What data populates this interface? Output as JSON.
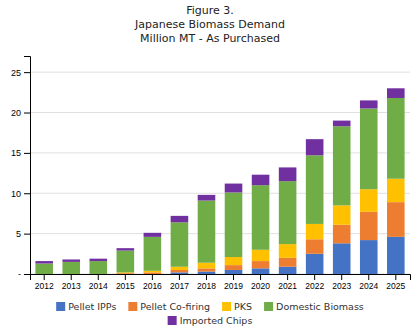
{
  "chart_data": {
    "type": "bar",
    "title": "Figure 3.\nJapanese Biomass Demand\nMillion MT - As Purchased",
    "categories": [
      "2012",
      "2013",
      "2014",
      "2015",
      "2016",
      "2017",
      "2018",
      "2019",
      "2020",
      "2021",
      "2022",
      "2023",
      "2024",
      "2025"
    ],
    "series": [
      {
        "name": "Pellet IPPs",
        "color": "#4472C4",
        "values": [
          0.0,
          0.0,
          0.0,
          0.0,
          0.0,
          0.2,
          0.3,
          0.5,
          0.7,
          0.9,
          2.5,
          3.8,
          4.2,
          4.6
        ]
      },
      {
        "name": "Pellet Co-firing",
        "color": "#ED7D31",
        "values": [
          0.0,
          0.0,
          0.0,
          0.1,
          0.2,
          0.3,
          0.4,
          0.6,
          0.9,
          1.1,
          1.8,
          2.3,
          3.5,
          4.3
        ]
      },
      {
        "name": "PKS",
        "color": "#FFC000",
        "values": [
          0.0,
          0.0,
          0.0,
          0.1,
          0.2,
          0.4,
          0.7,
          1.0,
          1.4,
          1.7,
          1.9,
          2.4,
          2.8,
          2.9
        ]
      },
      {
        "name": "Domestic Biomass",
        "color": "#70AD47",
        "values": [
          1.3,
          1.5,
          1.6,
          2.7,
          4.2,
          5.5,
          7.7,
          8.0,
          8.0,
          7.8,
          8.5,
          9.8,
          10.0,
          10.0
        ]
      },
      {
        "name": "Imported Chips",
        "color": "#7030A0",
        "values": [
          0.3,
          0.3,
          0.3,
          0.3,
          0.5,
          0.8,
          0.7,
          1.1,
          1.3,
          1.7,
          2.0,
          0.7,
          1.0,
          1.2
        ]
      }
    ],
    "stacked": true,
    "ylim": [
      0,
      27
    ],
    "yticks": [
      {
        "value": 0,
        "label": "-"
      },
      5,
      10,
      15,
      20,
      25
    ],
    "grid": true,
    "legend": "bottom"
  }
}
